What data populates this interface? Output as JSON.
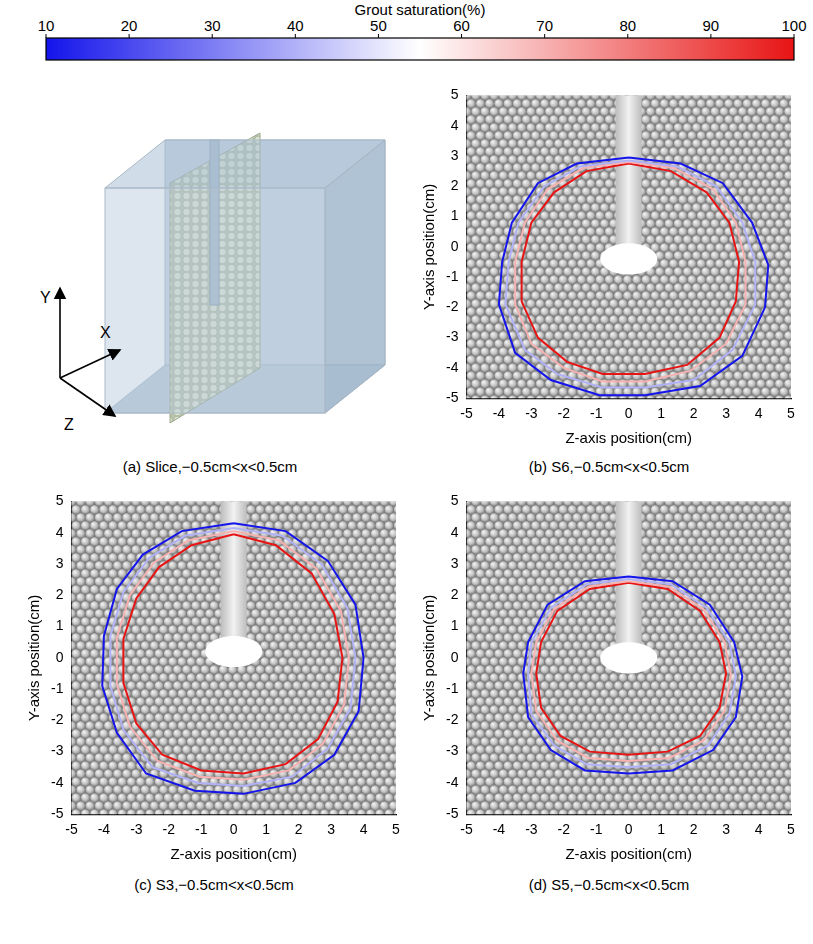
{
  "colorbar": {
    "title": "Grout saturation(%)",
    "range": [
      10,
      100
    ],
    "ticks": [
      10,
      20,
      30,
      40,
      50,
      60,
      70,
      80,
      90,
      100
    ]
  },
  "panel_a": {
    "caption": "(a) Slice,−0.5cm<x<0.5cm",
    "axis_labels": {
      "x": "X",
      "y": "Y",
      "z": "Z"
    }
  },
  "chart_data": [
    {
      "type": "contour",
      "caption": "(b) S6,−0.5cm<x<0.5cm",
      "x_label": "Z-axis position(cm)",
      "y_label": "Y-axis position(cm)",
      "xlim": [
        -5,
        5
      ],
      "ylim": [
        -5,
        5
      ],
      "xticks": [
        -5,
        -4,
        -3,
        -2,
        -1,
        0,
        1,
        2,
        3,
        4,
        5
      ],
      "yticks": [
        -5,
        -4,
        -3,
        -2,
        -1,
        0,
        1,
        2,
        3,
        4,
        5
      ],
      "grid": false,
      "injection_pipe": {
        "z": [
          -0.4,
          0.4
        ],
        "y": [
          -0.4,
          5
        ]
      },
      "contours": [
        {
          "level": 10,
          "z": [
            0,
            1.6,
            2.9,
            3.8,
            4.3,
            4.2,
            3.5,
            2.2,
            0.5,
            -0.9,
            -2.4,
            -3.5,
            -4.0,
            -3.9,
            -3.6,
            -2.8,
            -1.6,
            0
          ],
          "y": [
            2.95,
            2.75,
            2.1,
            0.8,
            -0.6,
            -2.0,
            -3.6,
            -4.6,
            -4.9,
            -4.9,
            -4.4,
            -3.5,
            -1.9,
            -0.5,
            0.8,
            2.1,
            2.75,
            2.95
          ]
        },
        {
          "level": 40,
          "z": [
            0,
            1.5,
            2.7,
            3.5,
            3.9,
            3.9,
            3.2,
            2.0,
            0.5,
            -0.8,
            -2.2,
            -3.2,
            -3.8,
            -3.7,
            -3.4,
            -2.6,
            -1.5,
            0
          ],
          "y": [
            2.85,
            2.65,
            2.0,
            0.8,
            -0.5,
            -1.9,
            -3.4,
            -4.4,
            -4.65,
            -4.65,
            -4.2,
            -3.4,
            -1.9,
            -0.5,
            0.8,
            2.0,
            2.65,
            2.85
          ]
        },
        {
          "level": 70,
          "z": [
            0,
            1.4,
            2.6,
            3.3,
            3.6,
            3.6,
            3.0,
            1.9,
            0.5,
            -0.8,
            -2.0,
            -3.0,
            -3.5,
            -3.5,
            -3.2,
            -2.5,
            -1.4,
            0
          ],
          "y": [
            2.8,
            2.6,
            1.9,
            0.8,
            -0.5,
            -1.9,
            -3.2,
            -4.1,
            -4.45,
            -4.45,
            -4.0,
            -3.2,
            -1.9,
            -0.5,
            0.8,
            1.9,
            2.6,
            2.8
          ]
        },
        {
          "level": 100,
          "z": [
            0,
            1.3,
            2.4,
            3.1,
            3.4,
            3.3,
            2.8,
            1.8,
            0.5,
            -0.8,
            -1.9,
            -2.8,
            -3.3,
            -3.3,
            -3.0,
            -2.3,
            -1.3,
            0
          ],
          "y": [
            2.75,
            2.5,
            1.8,
            0.8,
            -0.5,
            -1.8,
            -3.0,
            -3.9,
            -4.2,
            -4.2,
            -3.8,
            -3.0,
            -1.8,
            -0.5,
            0.8,
            1.8,
            2.5,
            2.75
          ]
        }
      ]
    },
    {
      "type": "contour",
      "caption": "(c) S3,−0.5cm<x<0.5cm",
      "x_label": "Z-axis position(cm)",
      "y_label": "Y-axis position(cm)",
      "xlim": [
        -5,
        5
      ],
      "ylim": [
        -5,
        5
      ],
      "xticks": [
        -5,
        -4,
        -3,
        -2,
        -1,
        0,
        1,
        2,
        3,
        4,
        5
      ],
      "yticks": [
        -5,
        -4,
        -3,
        -2,
        -1,
        0,
        1,
        2,
        3,
        4,
        5
      ],
      "grid": false,
      "injection_pipe": {
        "z": [
          -0.4,
          0.4
        ],
        "y": [
          0.2,
          5
        ]
      },
      "contours": [
        {
          "level": 10,
          "z": [
            0,
            1.6,
            2.9,
            3.75,
            4.0,
            3.85,
            3.1,
            1.9,
            0.3,
            -1.2,
            -2.7,
            -3.6,
            -4.05,
            -4.0,
            -3.6,
            -2.8,
            -1.6,
            0
          ],
          "y": [
            4.3,
            4.05,
            3.1,
            1.7,
            0,
            -1.7,
            -3.1,
            -4.0,
            -4.35,
            -4.25,
            -3.7,
            -2.4,
            -0.9,
            0.7,
            2.2,
            3.3,
            4.05,
            4.3
          ]
        },
        {
          "level": 40,
          "z": [
            0,
            1.5,
            2.7,
            3.5,
            3.75,
            3.6,
            2.9,
            1.8,
            0.3,
            -1.1,
            -2.5,
            -3.4,
            -3.8,
            -3.8,
            -3.4,
            -2.6,
            -1.5,
            0
          ],
          "y": [
            4.15,
            3.9,
            3.0,
            1.6,
            0,
            -1.6,
            -2.9,
            -3.8,
            -4.1,
            -4.0,
            -3.5,
            -2.3,
            -0.9,
            0.7,
            2.1,
            3.2,
            3.9,
            4.15
          ]
        },
        {
          "level": 70,
          "z": [
            0,
            1.4,
            2.55,
            3.3,
            3.55,
            3.4,
            2.75,
            1.7,
            0.3,
            -1.05,
            -2.35,
            -3.2,
            -3.6,
            -3.6,
            -3.2,
            -2.45,
            -1.4,
            0
          ],
          "y": [
            4.05,
            3.75,
            2.85,
            1.5,
            0,
            -1.5,
            -2.75,
            -3.6,
            -3.9,
            -3.8,
            -3.3,
            -2.2,
            -0.85,
            0.65,
            2.0,
            3.05,
            3.75,
            4.05
          ]
        },
        {
          "level": 100,
          "z": [
            0,
            1.3,
            2.4,
            3.1,
            3.35,
            3.2,
            2.6,
            1.6,
            0.3,
            -1.0,
            -2.2,
            -3.0,
            -3.4,
            -3.4,
            -3.0,
            -2.3,
            -1.3,
            0
          ],
          "y": [
            3.95,
            3.6,
            2.7,
            1.4,
            0,
            -1.4,
            -2.6,
            -3.4,
            -3.7,
            -3.6,
            -3.1,
            -2.1,
            -0.8,
            0.6,
            1.9,
            2.9,
            3.6,
            3.95
          ]
        }
      ]
    },
    {
      "type": "contour",
      "caption": "(d) S5,−0.5cm<x<0.5cm",
      "x_label": "Z-axis position(cm)",
      "y_label": "Y-axis position(cm)",
      "xlim": [
        -5,
        5
      ],
      "ylim": [
        -5,
        5
      ],
      "xticks": [
        -5,
        -4,
        -3,
        -2,
        -1,
        0,
        1,
        2,
        3,
        4,
        5
      ],
      "yticks": [
        -5,
        -4,
        -3,
        -2,
        -1,
        0,
        1,
        2,
        3,
        4,
        5
      ],
      "grid": false,
      "injection_pipe": {
        "z": [
          -0.4,
          0.4
        ],
        "y": [
          0,
          5
        ]
      },
      "contours": [
        {
          "level": 10,
          "z": [
            0,
            1.35,
            2.5,
            3.25,
            3.5,
            3.3,
            2.6,
            1.35,
            0,
            -1.35,
            -2.4,
            -3.1,
            -3.25,
            -3.1,
            -2.5,
            -1.35,
            0
          ],
          "y": [
            2.6,
            2.45,
            1.7,
            0.5,
            -0.6,
            -1.9,
            -2.95,
            -3.6,
            -3.7,
            -3.6,
            -2.95,
            -1.9,
            -0.5,
            0.5,
            1.7,
            2.45,
            2.6
          ]
        },
        {
          "level": 40,
          "z": [
            0,
            1.3,
            2.4,
            3.1,
            3.3,
            3.1,
            2.45,
            1.3,
            0,
            -1.3,
            -2.3,
            -3.0,
            -3.1,
            -3.0,
            -2.4,
            -1.3,
            0
          ],
          "y": [
            2.52,
            2.35,
            1.6,
            0.5,
            -0.6,
            -1.8,
            -2.8,
            -3.4,
            -3.5,
            -3.4,
            -2.8,
            -1.8,
            -0.5,
            0.5,
            1.6,
            2.35,
            2.52
          ]
        },
        {
          "level": 70,
          "z": [
            0,
            1.25,
            2.3,
            2.95,
            3.15,
            2.95,
            2.3,
            1.25,
            0,
            -1.25,
            -2.2,
            -2.85,
            -3.0,
            -2.85,
            -2.3,
            -1.25,
            0
          ],
          "y": [
            2.45,
            2.27,
            1.55,
            0.5,
            -0.55,
            -1.7,
            -2.65,
            -3.2,
            -3.3,
            -3.2,
            -2.65,
            -1.7,
            -0.5,
            0.5,
            1.55,
            2.27,
            2.45
          ]
        },
        {
          "level": 100,
          "z": [
            0,
            1.2,
            2.2,
            2.8,
            3.0,
            2.8,
            2.2,
            1.2,
            0,
            -1.2,
            -2.1,
            -2.7,
            -2.85,
            -2.7,
            -2.2,
            -1.2,
            0
          ],
          "y": [
            2.4,
            2.2,
            1.5,
            0.5,
            -0.5,
            -1.6,
            -2.5,
            -3.0,
            -3.1,
            -3.0,
            -2.5,
            -1.6,
            -0.5,
            0.5,
            1.5,
            2.2,
            2.4
          ]
        }
      ]
    }
  ]
}
